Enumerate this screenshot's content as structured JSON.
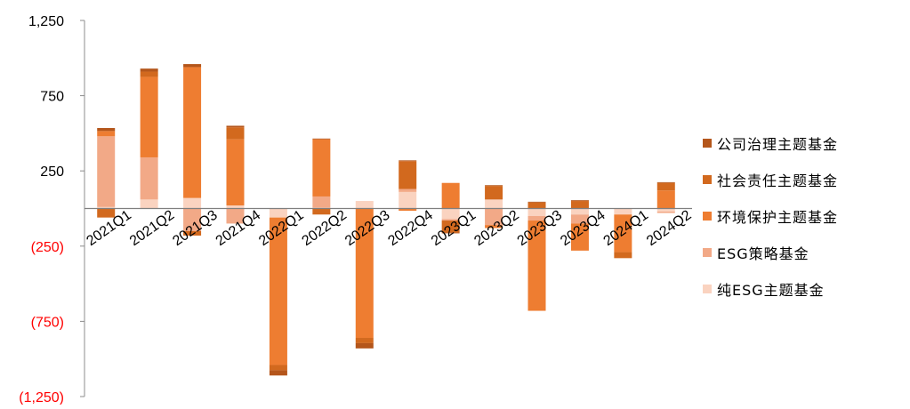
{
  "chart_data": {
    "type": "bar",
    "stacked": true,
    "categories": [
      "2021Q1",
      "2021Q2",
      "2021Q3",
      "2021Q4",
      "2022Q1",
      "2022Q2",
      "2022Q3",
      "2022Q4",
      "2023Q1",
      "2023Q2",
      "2023Q3",
      "2023Q4",
      "2024Q1",
      "2024Q2"
    ],
    "ylim": [
      -1250,
      1250
    ],
    "yticks": [
      {
        "value": 1250,
        "label": "1,250",
        "negative": false
      },
      {
        "value": 750,
        "label": "750",
        "negative": false
      },
      {
        "value": 250,
        "label": "250",
        "negative": false
      },
      {
        "value": -250,
        "label": "(250)",
        "negative": true
      },
      {
        "value": -750,
        "label": "(750)",
        "negative": true
      },
      {
        "value": -1250,
        "label": "(1,250)",
        "negative": true
      }
    ],
    "legend_position": "right",
    "grid": false,
    "series": [
      {
        "name": "纯ESG主题基金",
        "color": "#FAD3C0",
        "values": [
          10,
          60,
          70,
          20,
          -60,
          5,
          50,
          110,
          -70,
          60,
          -50,
          -40,
          -40,
          -20
        ]
      },
      {
        "name": "ESG策略基金",
        "color": "#F2A987",
        "values": [
          470,
          280,
          -150,
          -100,
          0,
          75,
          0,
          20,
          -10,
          -110,
          -30,
          -60,
          0,
          -10
        ]
      },
      {
        "name": "环境保护主题基金",
        "color": "#EE7D31",
        "values": [
          35,
          535,
          870,
          440,
          -980,
          380,
          -860,
          -15,
          170,
          -20,
          -600,
          -180,
          -250,
          120
        ]
      },
      {
        "name": "社会责任主题基金",
        "color": "#D2691E",
        "values": [
          -60,
          35,
          -30,
          80,
          -35,
          -40,
          -35,
          185,
          -80,
          90,
          40,
          50,
          -40,
          50
        ]
      },
      {
        "name": "公司治理主题基金",
        "color": "#B4561B",
        "values": [
          20,
          20,
          20,
          10,
          -35,
          5,
          -35,
          5,
          -5,
          5,
          5,
          5,
          0,
          5
        ]
      }
    ]
  }
}
